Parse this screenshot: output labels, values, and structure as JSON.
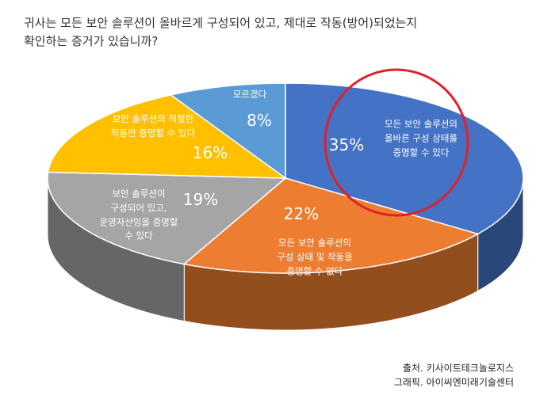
{
  "chart_data": {
    "type": "pie",
    "title": "귀사는 모든 보안 솔루션이 올바르게 구성되어 있고, 제대로 작동(방어)되었는지\n확인하는 증거가 있습니까?",
    "categories": [
      "모든 보안 솔루션의\n올바른 구성 상태를\n증명할 수 있다",
      "모든 보안 솔루션의\n구성 상태 및 작동을\n증명할 수 없다",
      "보안 솔루션이\n구성되어 있고,\n운영자산임을 증명할\n수 있다",
      "보안 솔루션의 적절한\n작동만 증명할 수 있다",
      "모르겠다"
    ],
    "values": [
      35,
      22,
      19,
      16,
      8
    ],
    "value_labels": [
      "35%",
      "22%",
      "19%",
      "16%",
      "8%"
    ],
    "colors": [
      "#4472c4",
      "#ed7d31",
      "#a5a5a5",
      "#ffc000",
      "#5b9bd5"
    ],
    "source": [
      "출처. 키사이트테크놀로지스",
      "그래픽. 아이씨엔미래기술센터"
    ]
  }
}
